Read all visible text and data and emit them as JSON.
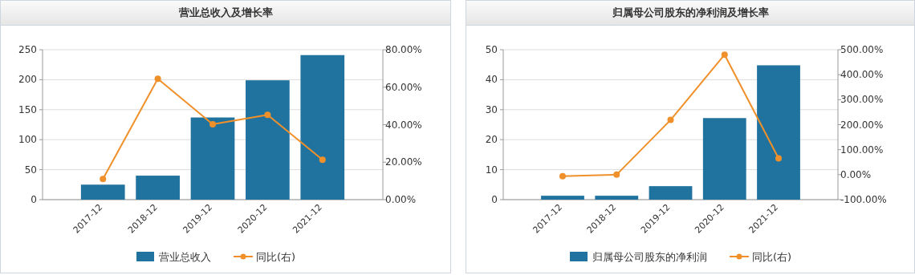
{
  "chart_data": [
    {
      "type": "bar",
      "title": "营业总收入及增长率",
      "categories": [
        "2017-12",
        "2018-12",
        "2019-12",
        "2020-12",
        "2021-12"
      ],
      "series": [
        {
          "name": "营业总收入",
          "color": "#21739f",
          "values": [
            25,
            40,
            137,
            199,
            241
          ]
        },
        {
          "name": "同比(右)",
          "type": "line",
          "axis": "y2",
          "color": "#f0902a",
          "values": [
            11,
            64.5,
            40.2,
            45.2,
            21.3
          ]
        }
      ],
      "ylim": [
        0,
        250
      ],
      "yticks": [
        0,
        50,
        100,
        150,
        200,
        250
      ],
      "y2lim": [
        0,
        80
      ],
      "y2ticks": [
        {
          "value": 0,
          "label": "0.00%"
        },
        {
          "value": 20,
          "label": "20.00%"
        },
        {
          "value": 40,
          "label": "40.00%"
        },
        {
          "value": 60,
          "label": "60.00%"
        },
        {
          "value": 80,
          "label": "80.00%"
        }
      ],
      "grid": "y",
      "legend": "bottom",
      "marker": "circle",
      "line_style": "solid"
    },
    {
      "type": "bar",
      "title": "归属母公司股东的净利润及增长率",
      "categories": [
        "2017-12",
        "2018-12",
        "2019-12",
        "2020-12",
        "2021-12"
      ],
      "series": [
        {
          "name": "归属母公司股东的净利润",
          "color": "#21739f",
          "values": [
            1.3,
            1.3,
            4.5,
            27.2,
            44.8
          ]
        },
        {
          "name": "同比(右)",
          "type": "line",
          "axis": "y2",
          "color": "#f0902a",
          "values": [
            -6,
            0,
            219,
            480,
            65
          ]
        }
      ],
      "ylim": [
        0,
        50
      ],
      "yticks": [
        0,
        10,
        20,
        30,
        40,
        50
      ],
      "y2lim": [
        -100,
        500
      ],
      "y2ticks": [
        {
          "value": -100,
          "label": "-100.00%"
        },
        {
          "value": 0,
          "label": "0.00%"
        },
        {
          "value": 100,
          "label": "100.00%"
        },
        {
          "value": 200,
          "label": "200.00%"
        },
        {
          "value": 300,
          "label": "300.00%"
        },
        {
          "value": 400,
          "label": "400.00%"
        },
        {
          "value": 500,
          "label": "500.00%"
        }
      ],
      "grid": "y",
      "legend": "bottom",
      "marker": "circle",
      "line_style": "solid"
    }
  ]
}
